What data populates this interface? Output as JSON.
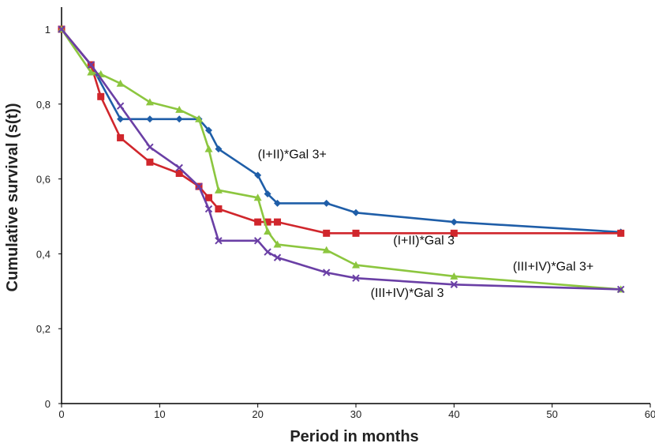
{
  "chart_data": {
    "type": "line",
    "title": "",
    "xlabel": "Period in months",
    "ylabel": "Cumulative survival (s(t))",
    "xlim": [
      0,
      60
    ],
    "ylim": [
      0,
      1
    ],
    "xticks": [
      0,
      10,
      20,
      30,
      40,
      50,
      60
    ],
    "xtick_labels": [
      "0",
      "10",
      "20",
      "30",
      "40",
      "50",
      "60"
    ],
    "yticks": [
      0,
      0.2,
      0.4,
      0.6,
      0.8,
      1
    ],
    "ytick_labels": [
      "0",
      "0,2",
      "0,4",
      "0,6",
      "0,8",
      "1"
    ],
    "grid": false,
    "series": [
      {
        "name": "(I+II)*Gal 3+",
        "color": "#1f5ea8",
        "marker": "diamond",
        "x": [
          0,
          3,
          6,
          9,
          12,
          14,
          15,
          16,
          20,
          21,
          22,
          27,
          30,
          40,
          57
        ],
        "y": [
          1.0,
          0.905,
          0.76,
          0.76,
          0.76,
          0.76,
          0.73,
          0.68,
          0.61,
          0.56,
          0.535,
          0.535,
          0.51,
          0.485,
          0.458
        ]
      },
      {
        "name": "(I+II)*Gal 3",
        "color": "#d0262c",
        "marker": "square",
        "x": [
          0,
          3,
          4,
          6,
          9,
          12,
          14,
          15,
          16,
          20,
          21,
          22,
          27,
          30,
          40,
          57
        ],
        "y": [
          1.0,
          0.905,
          0.82,
          0.71,
          0.645,
          0.615,
          0.58,
          0.55,
          0.52,
          0.485,
          0.485,
          0.485,
          0.455,
          0.455,
          0.455,
          0.455
        ]
      },
      {
        "name": "(III+IV)*Gal 3+",
        "color": "#8cc63f",
        "marker": "triangle",
        "x": [
          0,
          3,
          4,
          6,
          9,
          12,
          14,
          15,
          16,
          20,
          21,
          22,
          27,
          30,
          40,
          57
        ],
        "y": [
          1.0,
          0.885,
          0.88,
          0.855,
          0.805,
          0.785,
          0.76,
          0.68,
          0.57,
          0.55,
          0.46,
          0.425,
          0.41,
          0.37,
          0.34,
          0.305
        ]
      },
      {
        "name": "(III+IV)*Gal 3",
        "color": "#6a3fa5",
        "marker": "x",
        "x": [
          0,
          3,
          6,
          9,
          12,
          14,
          15,
          16,
          20,
          21,
          22,
          27,
          30,
          40,
          57
        ],
        "y": [
          1.0,
          0.905,
          0.795,
          0.685,
          0.63,
          0.58,
          0.52,
          0.435,
          0.435,
          0.405,
          0.39,
          0.35,
          0.335,
          0.318,
          0.305
        ]
      }
    ],
    "annotations": [
      {
        "text": "(I+II)*Gal 3+",
        "x": 20.0,
        "y": 0.655
      },
      {
        "text": "(I+II)*Gal 3",
        "x": 33.8,
        "y": 0.425
      },
      {
        "text": "(III+IV)*Gal 3+",
        "x": 46.0,
        "y": 0.355
      },
      {
        "text": "(III+IV)*Gal 3",
        "x": 31.5,
        "y": 0.285
      }
    ]
  }
}
